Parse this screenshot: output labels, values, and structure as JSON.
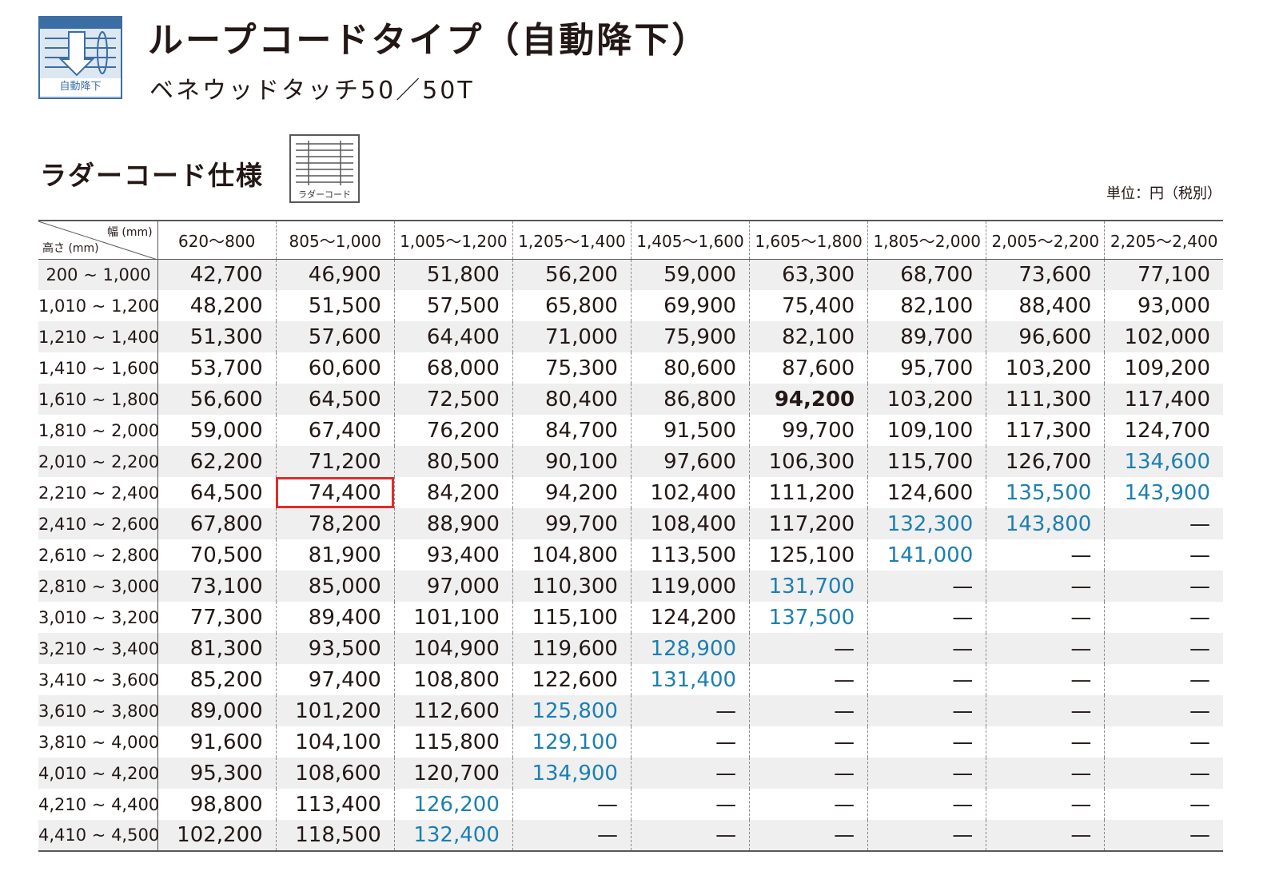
{
  "header": {
    "icon_label": "自動降下",
    "title": "ループコードタイプ（自動降下）",
    "subtitle": "ベネウッドタッチ50／50T"
  },
  "section": {
    "title": "ラダーコード仕様",
    "icon_label": "ラダーコード",
    "unit": "単位：円（税別）"
  },
  "table": {
    "corner": {
      "width_label": "幅 (mm)",
      "height_label": "高さ (mm)"
    },
    "columns": [
      "620〜800",
      "805〜1,000",
      "1,005〜1,200",
      "1,205〜1,400",
      "1,405〜1,600",
      "1,605〜1,800",
      "1,805〜2,000",
      "2,005〜2,200",
      "2,205〜2,400"
    ],
    "rows": [
      {
        "label": "200 ~ 1,000",
        "cells": [
          {
            "v": "42,700"
          },
          {
            "v": "46,900"
          },
          {
            "v": "51,800"
          },
          {
            "v": "56,200"
          },
          {
            "v": "59,000"
          },
          {
            "v": "63,300"
          },
          {
            "v": "68,700"
          },
          {
            "v": "73,600"
          },
          {
            "v": "77,100"
          }
        ]
      },
      {
        "label": "1,010 ~ 1,200",
        "cells": [
          {
            "v": "48,200"
          },
          {
            "v": "51,500"
          },
          {
            "v": "57,500"
          },
          {
            "v": "65,800"
          },
          {
            "v": "69,900"
          },
          {
            "v": "75,400"
          },
          {
            "v": "82,100"
          },
          {
            "v": "88,400"
          },
          {
            "v": "93,000"
          }
        ]
      },
      {
        "label": "1,210 ~ 1,400",
        "cells": [
          {
            "v": "51,300"
          },
          {
            "v": "57,600"
          },
          {
            "v": "64,400"
          },
          {
            "v": "71,000"
          },
          {
            "v": "75,900"
          },
          {
            "v": "82,100"
          },
          {
            "v": "89,700"
          },
          {
            "v": "96,600"
          },
          {
            "v": "102,000"
          }
        ]
      },
      {
        "label": "1,410 ~ 1,600",
        "cells": [
          {
            "v": "53,700"
          },
          {
            "v": "60,600"
          },
          {
            "v": "68,000"
          },
          {
            "v": "75,300"
          },
          {
            "v": "80,600"
          },
          {
            "v": "87,600"
          },
          {
            "v": "95,700"
          },
          {
            "v": "103,200"
          },
          {
            "v": "109,200"
          }
        ]
      },
      {
        "label": "1,610 ~ 1,800",
        "cells": [
          {
            "v": "56,600"
          },
          {
            "v": "64,500"
          },
          {
            "v": "72,500"
          },
          {
            "v": "80,400"
          },
          {
            "v": "86,800"
          },
          {
            "v": "94,200",
            "s": "bold"
          },
          {
            "v": "103,200"
          },
          {
            "v": "111,300"
          },
          {
            "v": "117,400"
          }
        ]
      },
      {
        "label": "1,810 ~ 2,000",
        "cells": [
          {
            "v": "59,000"
          },
          {
            "v": "67,400"
          },
          {
            "v": "76,200"
          },
          {
            "v": "84,700"
          },
          {
            "v": "91,500"
          },
          {
            "v": "99,700"
          },
          {
            "v": "109,100"
          },
          {
            "v": "117,300"
          },
          {
            "v": "124,700"
          }
        ]
      },
      {
        "label": "2,010 ~ 2,200",
        "cells": [
          {
            "v": "62,200"
          },
          {
            "v": "71,200"
          },
          {
            "v": "80,500"
          },
          {
            "v": "90,100"
          },
          {
            "v": "97,600"
          },
          {
            "v": "106,300"
          },
          {
            "v": "115,700"
          },
          {
            "v": "126,700"
          },
          {
            "v": "134,600",
            "s": "blue"
          }
        ]
      },
      {
        "label": "2,210 ~ 2,400",
        "cells": [
          {
            "v": "64,500"
          },
          {
            "v": "74,400",
            "s": "highlight"
          },
          {
            "v": "84,200"
          },
          {
            "v": "94,200"
          },
          {
            "v": "102,400"
          },
          {
            "v": "111,200"
          },
          {
            "v": "124,600"
          },
          {
            "v": "135,500",
            "s": "blue"
          },
          {
            "v": "143,900",
            "s": "blue"
          }
        ]
      },
      {
        "label": "2,410 ~ 2,600",
        "cells": [
          {
            "v": "67,800"
          },
          {
            "v": "78,200"
          },
          {
            "v": "88,900"
          },
          {
            "v": "99,700"
          },
          {
            "v": "108,400"
          },
          {
            "v": "117,200"
          },
          {
            "v": "132,300",
            "s": "blue"
          },
          {
            "v": "143,800",
            "s": "blue"
          },
          {
            "v": "—",
            "s": "dash"
          }
        ]
      },
      {
        "label": "2,610 ~ 2,800",
        "cells": [
          {
            "v": "70,500"
          },
          {
            "v": "81,900"
          },
          {
            "v": "93,400"
          },
          {
            "v": "104,800"
          },
          {
            "v": "113,500"
          },
          {
            "v": "125,100"
          },
          {
            "v": "141,000",
            "s": "blue"
          },
          {
            "v": "—",
            "s": "dash"
          },
          {
            "v": "—",
            "s": "dash"
          }
        ]
      },
      {
        "label": "2,810 ~ 3,000",
        "cells": [
          {
            "v": "73,100"
          },
          {
            "v": "85,000"
          },
          {
            "v": "97,000"
          },
          {
            "v": "110,300"
          },
          {
            "v": "119,000"
          },
          {
            "v": "131,700",
            "s": "blue"
          },
          {
            "v": "—",
            "s": "dash"
          },
          {
            "v": "—",
            "s": "dash"
          },
          {
            "v": "—",
            "s": "dash"
          }
        ]
      },
      {
        "label": "3,010 ~ 3,200",
        "cells": [
          {
            "v": "77,300"
          },
          {
            "v": "89,400"
          },
          {
            "v": "101,100"
          },
          {
            "v": "115,100"
          },
          {
            "v": "124,200"
          },
          {
            "v": "137,500",
            "s": "blue"
          },
          {
            "v": "—",
            "s": "dash"
          },
          {
            "v": "—",
            "s": "dash"
          },
          {
            "v": "—",
            "s": "dash"
          }
        ]
      },
      {
        "label": "3,210 ~ 3,400",
        "cells": [
          {
            "v": "81,300"
          },
          {
            "v": "93,500"
          },
          {
            "v": "104,900"
          },
          {
            "v": "119,600"
          },
          {
            "v": "128,900",
            "s": "blue"
          },
          {
            "v": "—",
            "s": "dash"
          },
          {
            "v": "—",
            "s": "dash"
          },
          {
            "v": "—",
            "s": "dash"
          },
          {
            "v": "—",
            "s": "dash"
          }
        ]
      },
      {
        "label": "3,410 ~ 3,600",
        "cells": [
          {
            "v": "85,200"
          },
          {
            "v": "97,400"
          },
          {
            "v": "108,800"
          },
          {
            "v": "122,600"
          },
          {
            "v": "131,400",
            "s": "blue"
          },
          {
            "v": "—",
            "s": "dash"
          },
          {
            "v": "—",
            "s": "dash"
          },
          {
            "v": "—",
            "s": "dash"
          },
          {
            "v": "—",
            "s": "dash"
          }
        ]
      },
      {
        "label": "3,610 ~ 3,800",
        "cells": [
          {
            "v": "89,000"
          },
          {
            "v": "101,200"
          },
          {
            "v": "112,600"
          },
          {
            "v": "125,800",
            "s": "blue"
          },
          {
            "v": "—",
            "s": "dash"
          },
          {
            "v": "—",
            "s": "dash"
          },
          {
            "v": "—",
            "s": "dash"
          },
          {
            "v": "—",
            "s": "dash"
          },
          {
            "v": "—",
            "s": "dash"
          }
        ]
      },
      {
        "label": "3,810 ~ 4,000",
        "cells": [
          {
            "v": "91,600"
          },
          {
            "v": "104,100"
          },
          {
            "v": "115,800"
          },
          {
            "v": "129,100",
            "s": "blue"
          },
          {
            "v": "—",
            "s": "dash"
          },
          {
            "v": "—",
            "s": "dash"
          },
          {
            "v": "—",
            "s": "dash"
          },
          {
            "v": "—",
            "s": "dash"
          },
          {
            "v": "—",
            "s": "dash"
          }
        ]
      },
      {
        "label": "4,010 ~ 4,200",
        "cells": [
          {
            "v": "95,300"
          },
          {
            "v": "108,600"
          },
          {
            "v": "120,700"
          },
          {
            "v": "134,900",
            "s": "blue"
          },
          {
            "v": "—",
            "s": "dash"
          },
          {
            "v": "—",
            "s": "dash"
          },
          {
            "v": "—",
            "s": "dash"
          },
          {
            "v": "—",
            "s": "dash"
          },
          {
            "v": "—",
            "s": "dash"
          }
        ]
      },
      {
        "label": "4,210 ~ 4,400",
        "cells": [
          {
            "v": "98,800"
          },
          {
            "v": "113,400"
          },
          {
            "v": "126,200",
            "s": "blue"
          },
          {
            "v": "—",
            "s": "dash"
          },
          {
            "v": "—",
            "s": "dash"
          },
          {
            "v": "—",
            "s": "dash"
          },
          {
            "v": "—",
            "s": "dash"
          },
          {
            "v": "—",
            "s": "dash"
          },
          {
            "v": "—",
            "s": "dash"
          }
        ]
      },
      {
        "label": "4,410 ~ 4,500",
        "cells": [
          {
            "v": "102,200"
          },
          {
            "v": "118,500"
          },
          {
            "v": "132,400",
            "s": "blue"
          },
          {
            "v": "—",
            "s": "dash"
          },
          {
            "v": "—",
            "s": "dash"
          },
          {
            "v": "—",
            "s": "dash"
          },
          {
            "v": "—",
            "s": "dash"
          },
          {
            "v": "—",
            "s": "dash"
          },
          {
            "v": "—",
            "s": "dash"
          }
        ]
      }
    ]
  },
  "colors": {
    "icon_blue": "#3b6ea5",
    "over_limit_price": "#1c7fb3",
    "highlight_border": "#e12b2b",
    "row_shade": "#efefef"
  }
}
